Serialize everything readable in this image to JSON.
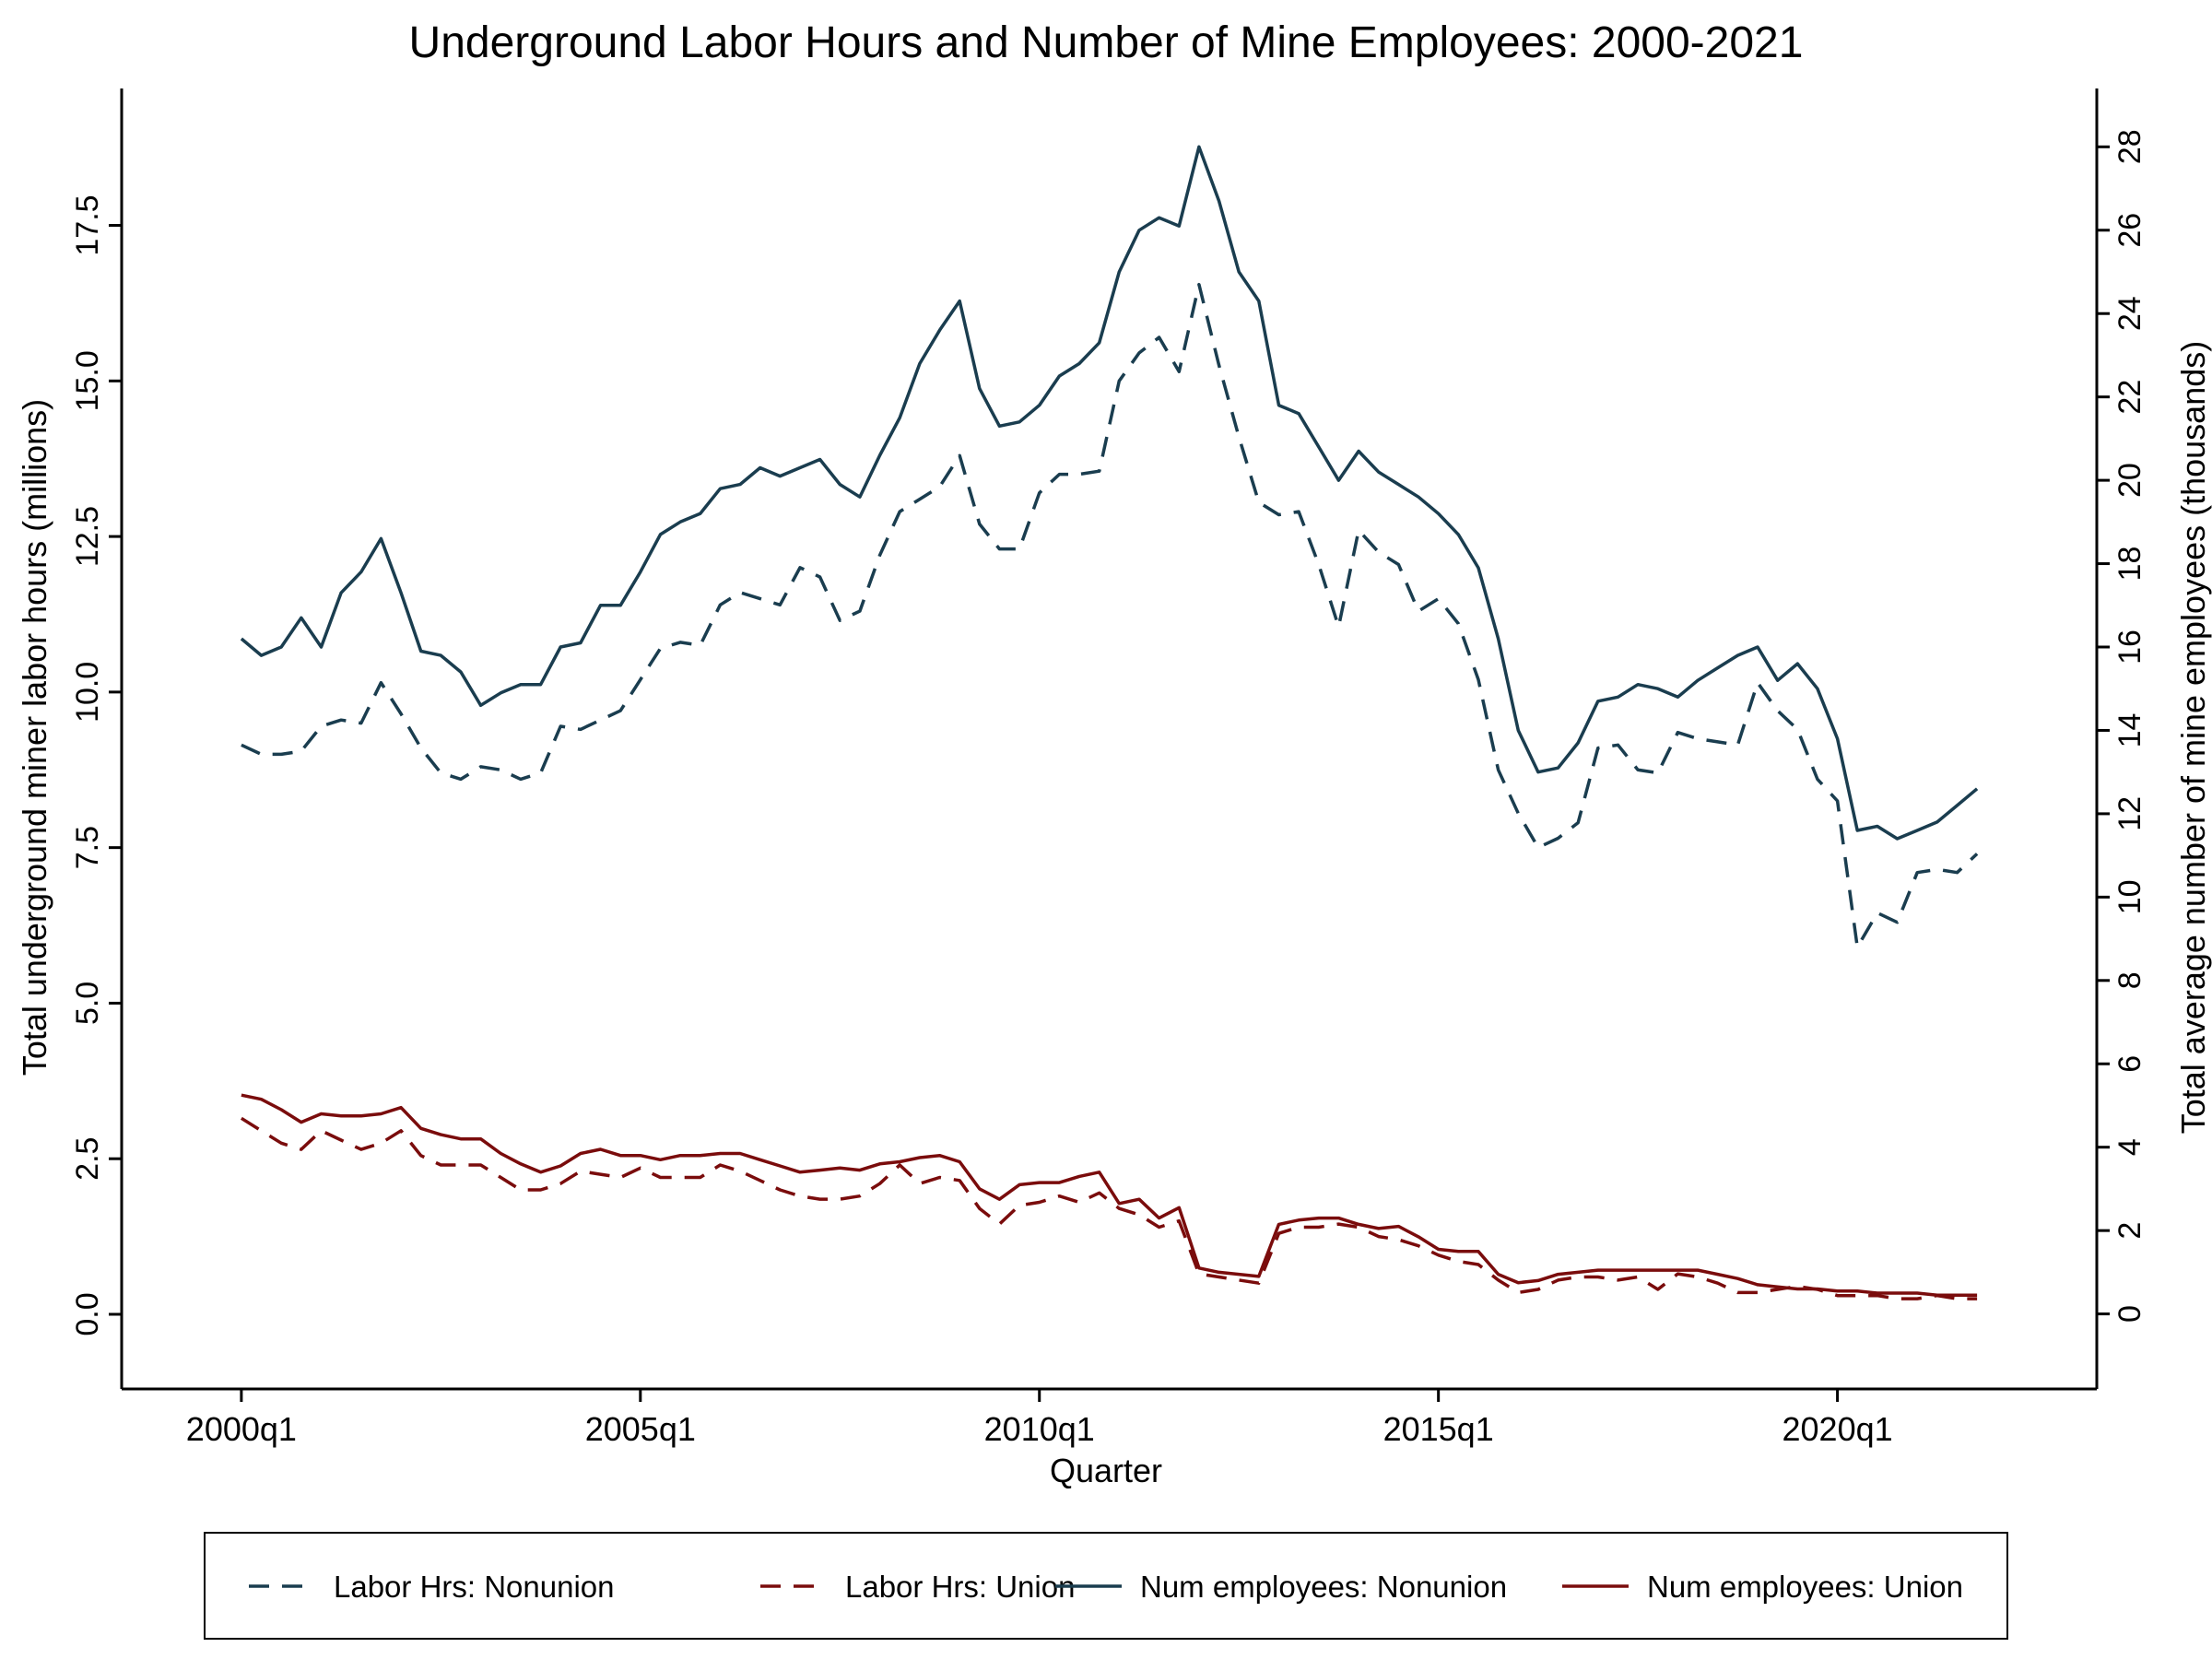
{
  "chart_data": {
    "type": "line",
    "title": "Underground Labor Hours and Number of Mine Employees: 2000-2021",
    "xlabel": "Quarter",
    "ylabel_left": "Total underground miner labor hours (millions)",
    "ylabel_right": "Total average number of mine employees (thousands)",
    "x_ticks": [
      "2000q1",
      "2005q1",
      "2010q1",
      "2015q1",
      "2020q1"
    ],
    "y_left_ticks": [
      "0.0",
      "2.5",
      "5.0",
      "7.5",
      "10.0",
      "12.5",
      "15.0",
      "17.5"
    ],
    "y_right_ticks": [
      "0",
      "2",
      "4",
      "6",
      "8",
      "10",
      "12",
      "14",
      "16",
      "18",
      "20",
      "22",
      "24",
      "26",
      "28"
    ],
    "xlim": [
      -6,
      93
    ],
    "ylim_left": [
      -1.2,
      19.7
    ],
    "ylim_right": [
      -1.8,
      29.4
    ],
    "grid": false,
    "legend_position": "bottom",
    "quarter_index_start": "2000q1",
    "series": [
      {
        "name": "Labor Hrs: Nonunion",
        "axis": "left",
        "style": "dashed",
        "color": "#1a3d4f",
        "values": [
          9.15,
          9.0,
          9.0,
          9.05,
          9.45,
          9.55,
          9.5,
          10.15,
          9.65,
          9.1,
          8.7,
          8.6,
          8.8,
          8.75,
          8.6,
          8.7,
          9.45,
          9.4,
          9.55,
          9.7,
          10.2,
          10.7,
          10.8,
          10.75,
          11.4,
          11.6,
          11.5,
          11.4,
          12.0,
          11.85,
          11.15,
          11.3,
          12.2,
          12.9,
          13.1,
          13.3,
          13.8,
          12.7,
          12.3,
          12.3,
          13.2,
          13.5,
          13.5,
          13.55,
          15.0,
          15.45,
          15.7,
          15.15,
          16.55,
          15.25,
          14.1,
          13.05,
          12.85,
          12.9,
          12.05,
          11.05,
          12.6,
          12.25,
          12.05,
          11.3,
          11.5,
          11.1,
          10.2,
          8.75,
          8.05,
          7.5,
          7.65,
          7.9,
          9.1,
          9.15,
          8.75,
          8.7,
          9.35,
          9.25,
          9.2,
          9.15,
          10.15,
          9.7,
          9.4,
          8.6,
          8.25,
          5.9,
          6.45,
          6.3,
          7.1,
          7.15,
          7.1,
          7.4
        ]
      },
      {
        "name": "Labor Hrs: Union",
        "axis": "left",
        "style": "dashed",
        "color": "#7a0c0c",
        "values": [
          3.15,
          2.95,
          2.75,
          2.65,
          2.95,
          2.8,
          2.65,
          2.75,
          2.95,
          2.55,
          2.4,
          2.4,
          2.4,
          2.2,
          2.0,
          2.0,
          2.1,
          2.3,
          2.25,
          2.2,
          2.35,
          2.2,
          2.2,
          2.2,
          2.4,
          2.3,
          2.15,
          2.0,
          1.9,
          1.85,
          1.85,
          1.9,
          2.1,
          2.4,
          2.1,
          2.2,
          2.15,
          1.7,
          1.45,
          1.75,
          1.8,
          1.9,
          1.8,
          1.95,
          1.7,
          1.6,
          1.4,
          1.5,
          0.65,
          0.6,
          0.55,
          0.5,
          1.3,
          1.4,
          1.4,
          1.45,
          1.4,
          1.25,
          1.2,
          1.1,
          0.95,
          0.85,
          0.8,
          0.55,
          0.35,
          0.4,
          0.55,
          0.6,
          0.6,
          0.55,
          0.6,
          0.4,
          0.65,
          0.6,
          0.5,
          0.35,
          0.35,
          0.4,
          0.45,
          0.4,
          0.3,
          0.3,
          0.3,
          0.25,
          0.25,
          0.3,
          0.25,
          0.25
        ]
      },
      {
        "name": "Num employees: Nonunion",
        "axis": "right",
        "style": "solid",
        "color": "#1a3d4f",
        "values": [
          16.2,
          15.8,
          16.0,
          16.7,
          16.0,
          17.3,
          17.8,
          18.6,
          17.3,
          15.9,
          15.8,
          15.4,
          14.6,
          14.9,
          15.1,
          15.1,
          16.0,
          16.1,
          17.0,
          17.0,
          17.8,
          18.7,
          19.0,
          19.2,
          19.8,
          19.9,
          20.3,
          20.1,
          20.3,
          20.5,
          19.9,
          19.6,
          20.6,
          21.5,
          22.8,
          23.6,
          24.3,
          22.2,
          21.3,
          21.4,
          21.8,
          22.5,
          22.8,
          23.3,
          25.0,
          26.0,
          26.3,
          26.1,
          28.0,
          26.7,
          25.0,
          24.3,
          21.8,
          21.6,
          20.8,
          20.0,
          20.7,
          20.2,
          19.9,
          19.6,
          19.2,
          18.7,
          17.9,
          16.2,
          14.0,
          13.0,
          13.1,
          13.7,
          14.7,
          14.8,
          15.1,
          15.0,
          14.8,
          15.2,
          15.5,
          15.8,
          16.0,
          15.2,
          15.6,
          15.0,
          13.8,
          11.6,
          11.7,
          11.4,
          11.6,
          11.8,
          12.2,
          12.6
        ]
      },
      {
        "name": "Num employees: Union",
        "axis": "right",
        "style": "solid",
        "color": "#7a0c0c",
        "values": [
          5.25,
          5.15,
          4.9,
          4.6,
          4.8,
          4.75,
          4.75,
          4.8,
          4.95,
          4.45,
          4.3,
          4.2,
          4.2,
          3.85,
          3.6,
          3.4,
          3.55,
          3.85,
          3.95,
          3.8,
          3.8,
          3.7,
          3.8,
          3.8,
          3.85,
          3.85,
          3.7,
          3.55,
          3.4,
          3.45,
          3.5,
          3.45,
          3.6,
          3.65,
          3.75,
          3.8,
          3.65,
          3.0,
          2.75,
          3.1,
          3.15,
          3.15,
          3.3,
          3.4,
          2.65,
          2.75,
          2.3,
          2.55,
          1.1,
          1.0,
          0.95,
          0.9,
          2.15,
          2.25,
          2.3,
          2.3,
          2.15,
          2.05,
          2.1,
          1.85,
          1.55,
          1.5,
          1.5,
          0.95,
          0.75,
          0.8,
          0.95,
          1.0,
          1.05,
          1.05,
          1.05,
          1.05,
          1.05,
          1.05,
          0.95,
          0.85,
          0.7,
          0.65,
          0.6,
          0.6,
          0.55,
          0.55,
          0.5,
          0.5,
          0.5,
          0.45,
          0.45,
          0.45
        ]
      }
    ]
  }
}
